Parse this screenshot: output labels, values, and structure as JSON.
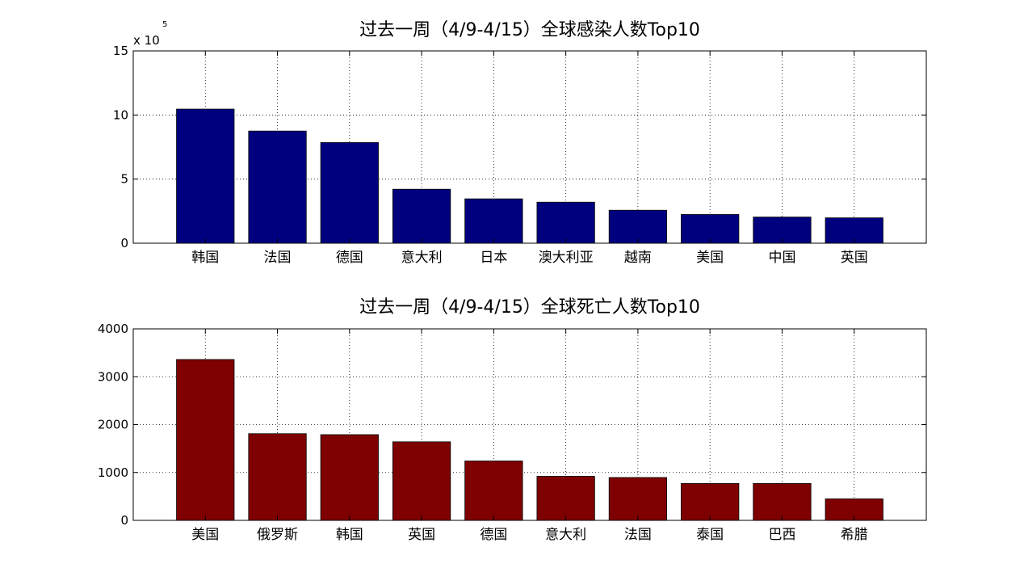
{
  "chart_data": [
    {
      "type": "bar",
      "title": "过去一周（4/9-4/15）全球感染人数Top10",
      "xlabel": "",
      "ylabel": "",
      "categories": [
        "韩国",
        "法国",
        "德国",
        "意大利",
        "日本",
        "澳大利亚",
        "越南",
        "美国",
        "中国",
        "英国"
      ],
      "values": [
        1046000,
        875000,
        785000,
        421000,
        346000,
        320000,
        257000,
        224000,
        204000,
        198000
      ],
      "ylim": [
        0,
        1500000
      ],
      "yticks": [
        0,
        500000,
        1000000,
        1500000
      ],
      "ytick_labels": [
        "0",
        "5",
        "10",
        "15"
      ],
      "multiplier": {
        "base": "x 10",
        "exponent": "5"
      },
      "bar_color": "#00007f",
      "grid": true
    },
    {
      "type": "bar",
      "title": "过去一周（4/9-4/15）全球死亡人数Top10",
      "xlabel": "",
      "ylabel": "",
      "categories": [
        "美国",
        "俄罗斯",
        "韩国",
        "英国",
        "德国",
        "意大利",
        "法国",
        "泰国",
        "巴西",
        "希腊"
      ],
      "values": [
        3360,
        1810,
        1790,
        1640,
        1240,
        920,
        895,
        770,
        770,
        450
      ],
      "ylim": [
        0,
        4000
      ],
      "yticks": [
        0,
        1000,
        2000,
        3000,
        4000
      ],
      "ytick_labels": [
        "0",
        "1000",
        "2000",
        "3000",
        "4000"
      ],
      "bar_color": "#7f0000",
      "grid": true
    }
  ]
}
